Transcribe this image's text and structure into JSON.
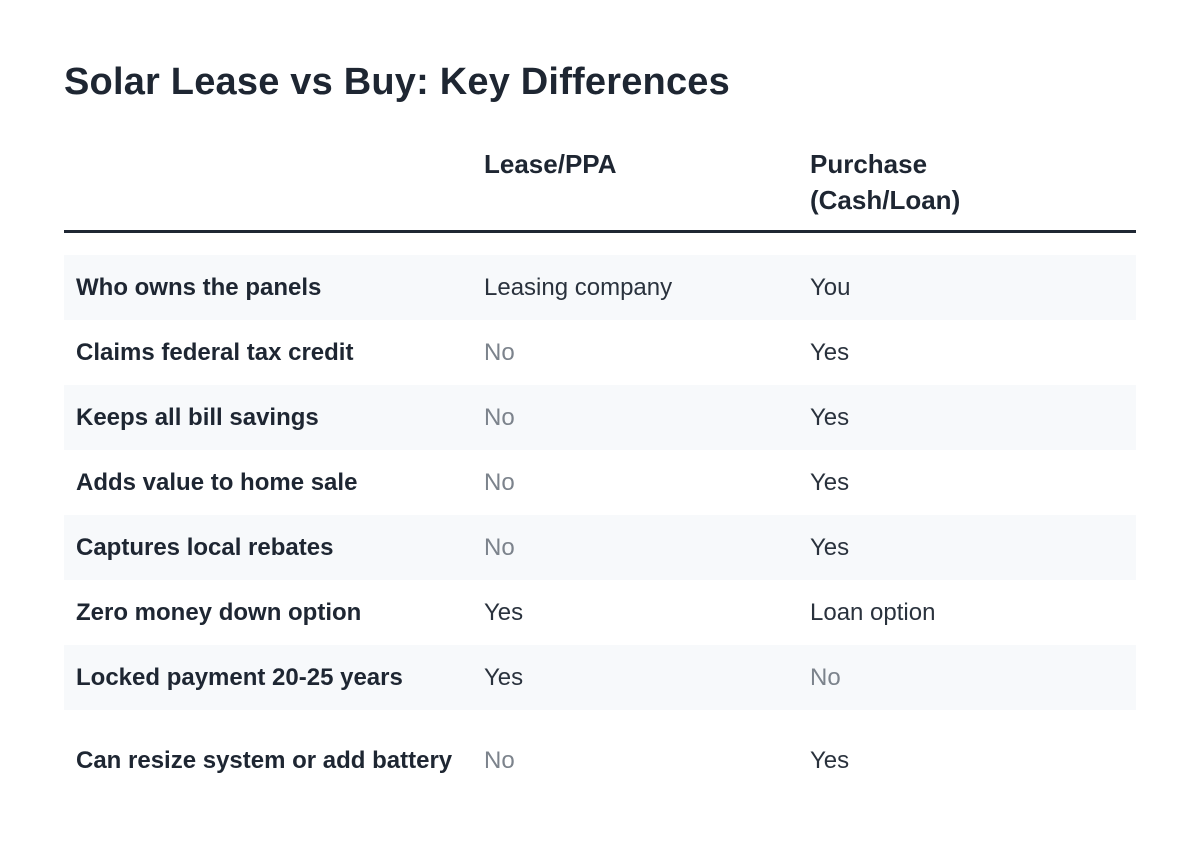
{
  "title": "Solar Lease vs Buy: Key Differences",
  "columns": {
    "lease": "Lease/PPA",
    "purchase_line1": "Purchase",
    "purchase_line2": "(Cash/Loan)"
  },
  "rows": [
    {
      "label": "Who owns the panels",
      "lease": "Leasing company",
      "purchase": "You"
    },
    {
      "label": "Claims federal tax credit",
      "lease": "No",
      "purchase": "Yes"
    },
    {
      "label": "Keeps all bill savings",
      "lease": "No",
      "purchase": "Yes"
    },
    {
      "label": "Adds value to home sale",
      "lease": "No",
      "purchase": "Yes"
    },
    {
      "label": "Captures local rebates",
      "lease": "No",
      "purchase": "Yes"
    },
    {
      "label": "Zero money down option",
      "lease": "Yes",
      "purchase": "Loan option"
    },
    {
      "label": "Locked payment 20-25 years",
      "lease": "Yes",
      "purchase": "No"
    },
    {
      "label": "Can resize system or add battery",
      "lease": "No",
      "purchase": "Yes"
    }
  ],
  "colors": {
    "text": "#1e2632",
    "muted": "#7c838c",
    "row_shade": "#f7f9fb",
    "rule": "#1f2733"
  }
}
